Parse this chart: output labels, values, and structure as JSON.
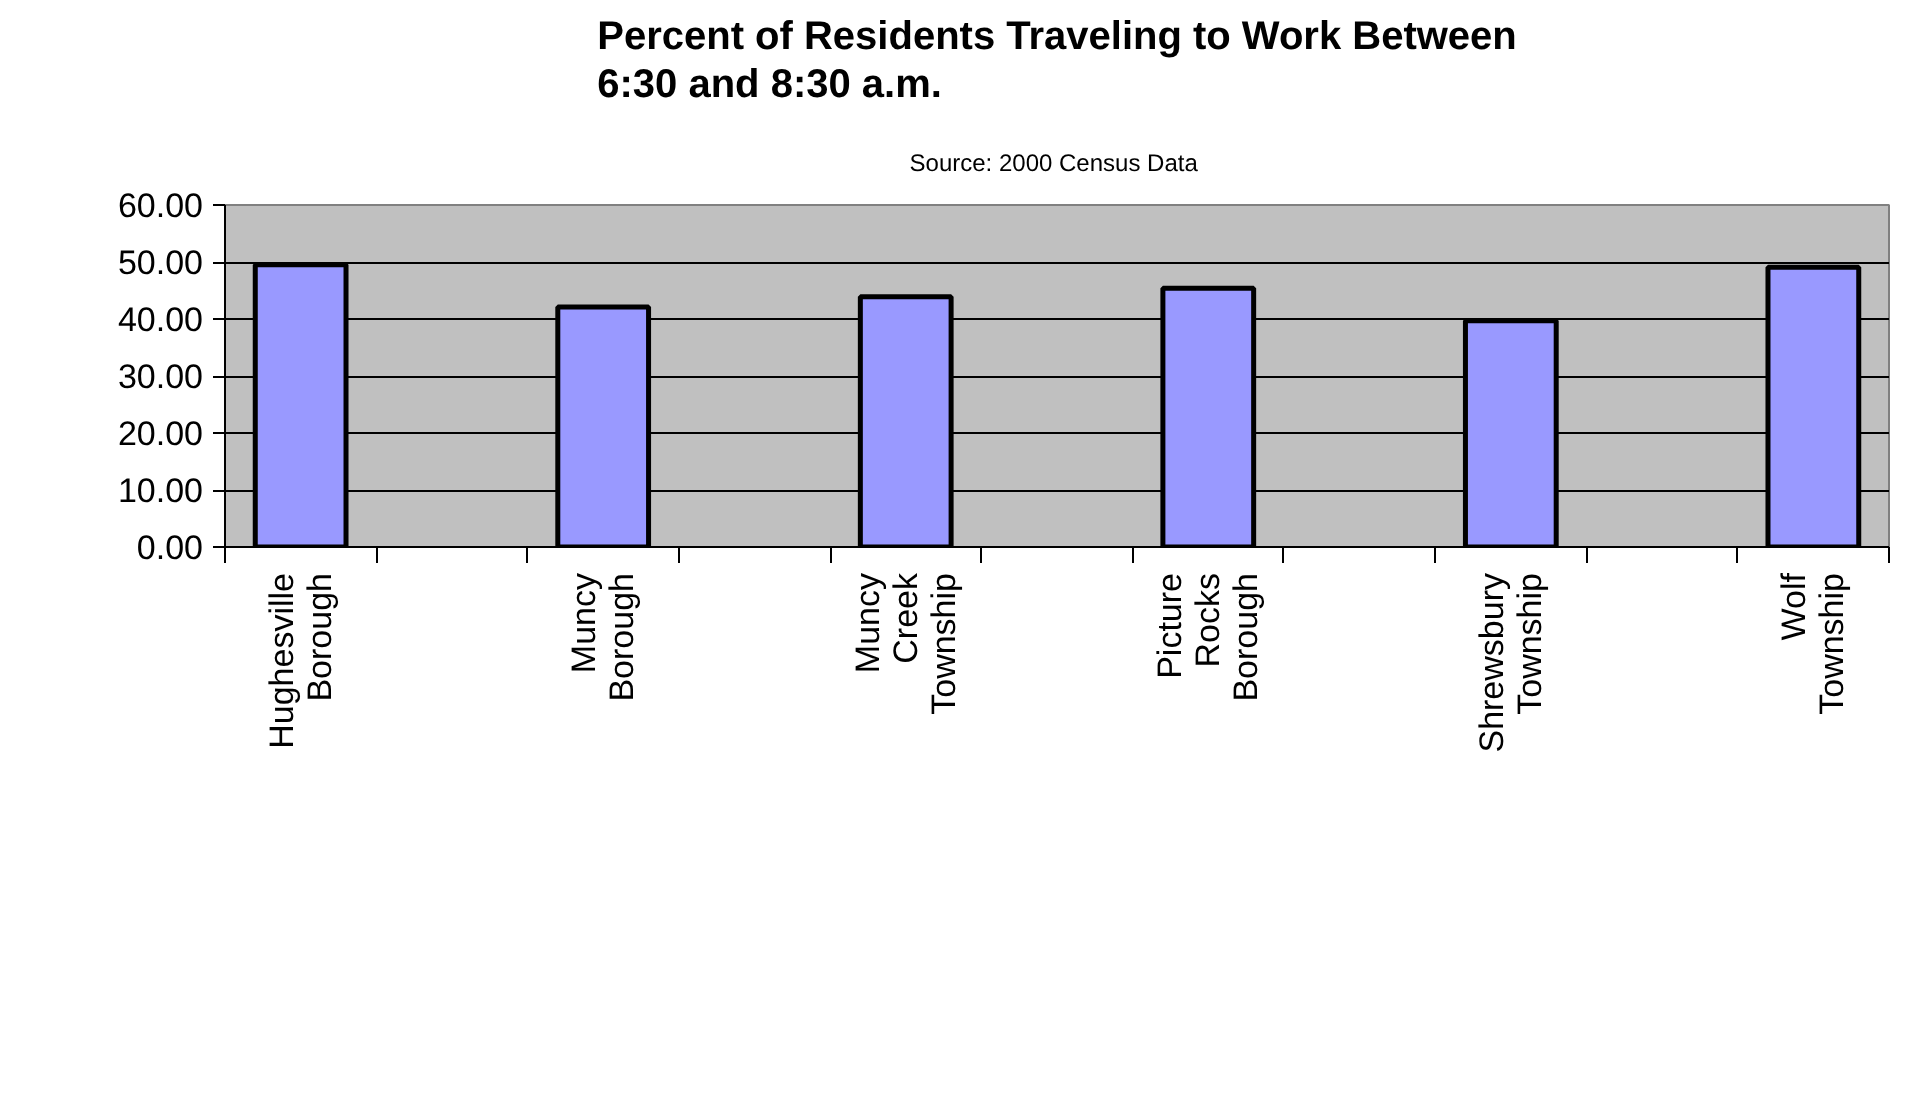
{
  "chart_data": {
    "type": "bar",
    "title": "Percent of Residents Traveling to Work Between\n6:30 and 8:30 a.m.",
    "subtitle": "Source:  2000 Census Data",
    "categories": [
      "Hughesville Borough",
      null,
      "Muncy Borough",
      null,
      "Muncy Creek Township",
      null,
      "Picture Rocks Borough",
      null,
      "Shrewsbury Township",
      null,
      "Wolf Township"
    ],
    "values": [
      49.5,
      null,
      42.1,
      null,
      43.9,
      null,
      45.4,
      null,
      39.7,
      null,
      49.1
    ],
    "color": "#9999ff",
    "ylim": [
      0,
      60
    ],
    "yticks": [
      {
        "value": 0,
        "label": "0.00"
      },
      {
        "value": 10,
        "label": "10.00"
      },
      {
        "value": 20,
        "label": "20.00"
      },
      {
        "value": 30,
        "label": "30.00"
      },
      {
        "value": 40,
        "label": "40.00"
      },
      {
        "value": 50,
        "label": "50.00"
      },
      {
        "value": 60,
        "label": "60.00"
      }
    ],
    "grid": "y"
  }
}
